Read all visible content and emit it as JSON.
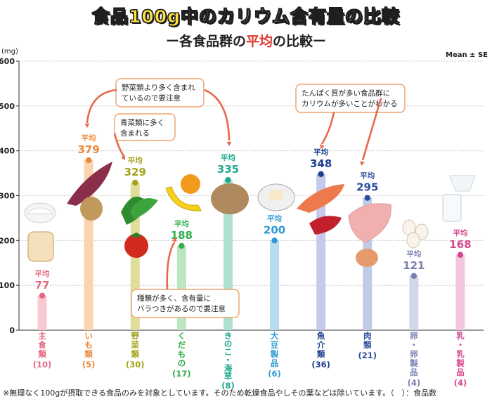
{
  "title": {
    "pre": "食品",
    "num": "100g",
    "post": "中のカリウム含有量の比較"
  },
  "subtitle": {
    "dash_l": "ー",
    "pre": "各食品群の",
    "red": "平均",
    "post": "の比較",
    "dash_r": "ー"
  },
  "unit": "(mg)",
  "mean_label": "Mean ± SE",
  "avg_label": "平均",
  "footnote": "※無理なく100gが摂取できる食品のみを対象としています。そのため乾燥食品やしその葉などは除いています。（　）：食品数",
  "callouts": [
    {
      "lines": [
        "野菜類より多く含まれ",
        "ているので要注意"
      ]
    },
    {
      "lines": [
        "青菜類に多く",
        "含まれる"
      ]
    },
    {
      "lines": [
        "たんぱく質が多い食品群に",
        "カリウムが多いことがわかる"
      ]
    },
    {
      "lines": [
        "種類が多く、含有量に",
        "バラつきがあるので要注意"
      ]
    }
  ],
  "chart_data": {
    "type": "bar",
    "ylim": [
      0,
      600
    ],
    "yticks": [
      0,
      100,
      200,
      300,
      400,
      500,
      600
    ],
    "error_bars": "Mean ± SE",
    "categories": [
      {
        "label": "主食類",
        "count": "(10)",
        "mean": 77,
        "color": "#e5677f",
        "bar": "#f7c9d1"
      },
      {
        "label": "いも類",
        "count": "(5)",
        "mean": 379,
        "color": "#ec8a3d",
        "bar": "#fbd3ae"
      },
      {
        "label": "野菜類",
        "count": "(30)",
        "mean": 329,
        "color": "#a2a21a",
        "bar": "#dede9a"
      },
      {
        "label": "くだもの",
        "count": "(17)",
        "mean": 188,
        "color": "#2fae4b",
        "bar": "#bde5c2"
      },
      {
        "label": "きのこ・海草",
        "count": "(8)",
        "mean": 335,
        "color": "#1ea98e",
        "bar": "#afdfd1"
      },
      {
        "label": "大豆製品",
        "count": "(6)",
        "mean": 200,
        "color": "#2d9ad5",
        "bar": "#b5dcf2"
      },
      {
        "label": "魚介類",
        "count": "(36)",
        "mean": 348,
        "color": "#1d3f8f",
        "bar": "#c7c9ec"
      },
      {
        "label": "肉類",
        "count": "(21)",
        "mean": 295,
        "color": "#2d4d9c",
        "bar": "#c0cbe8"
      },
      {
        "label": "卵・卵製品",
        "count": "(4)",
        "mean": 121,
        "color": "#7a7fae",
        "bar": "#d3d5e8"
      },
      {
        "label": "乳・乳製品",
        "count": "(4)",
        "mean": 168,
        "color": "#d6478f",
        "bar": "#f4c6dc"
      }
    ]
  }
}
